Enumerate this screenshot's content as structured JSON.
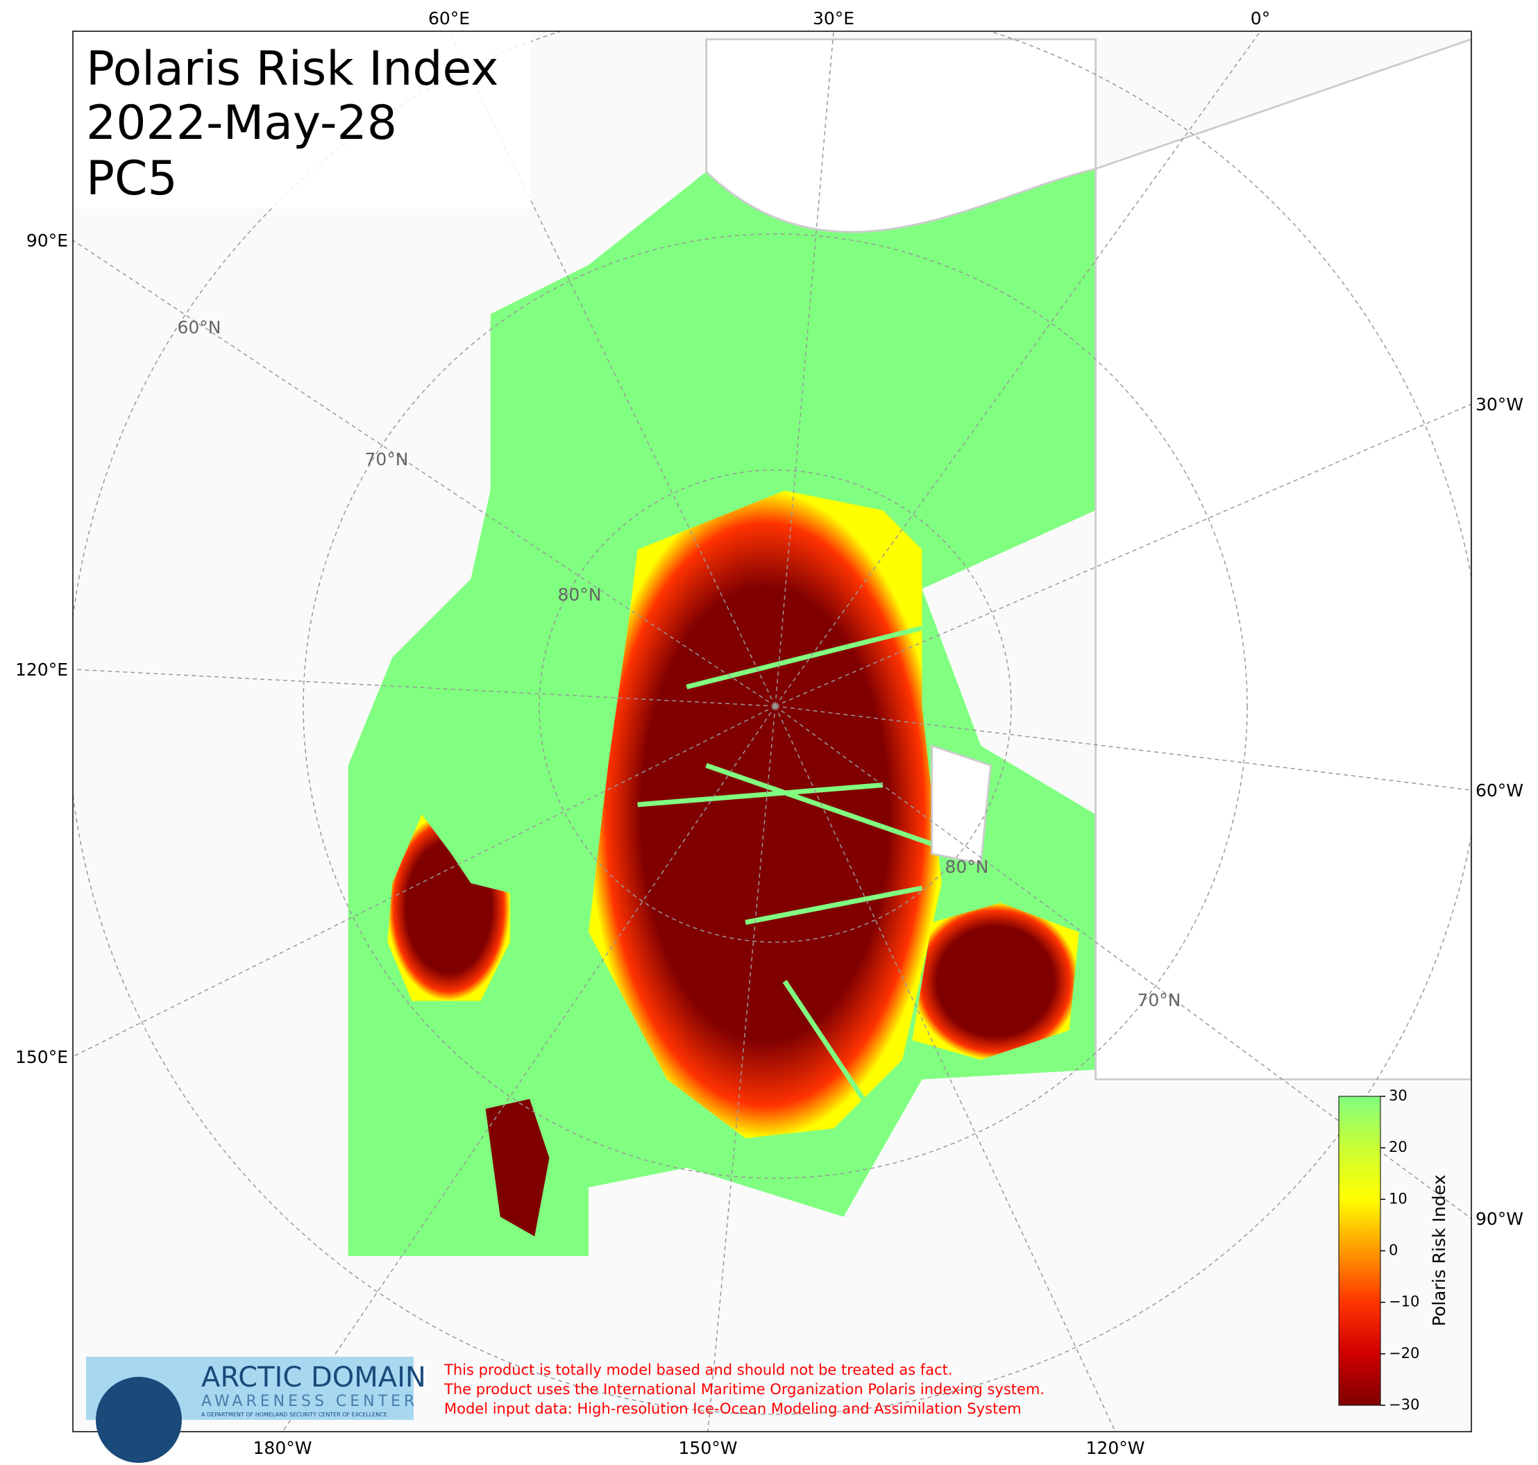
{
  "title": {
    "lines": [
      "Polaris Risk Index",
      "2022-May-28",
      "PC5"
    ]
  },
  "graticule": {
    "top": [
      "60°E",
      "30°E",
      "0°"
    ],
    "bottom": [
      "180°W",
      "150°W",
      "120°W"
    ],
    "left": [
      "90°E",
      "120°E",
      "150°E"
    ],
    "right": [
      "30°W",
      "60°W",
      "90°W"
    ],
    "latitudes": [
      "60°N",
      "70°N",
      "80°N",
      "80°N",
      "70°N"
    ]
  },
  "colorbar": {
    "label": "Polaris Risk Index",
    "lim": [
      -30,
      30
    ],
    "ticks": [
      {
        "value": -30,
        "label": "−30"
      },
      {
        "value": -20,
        "label": "−20"
      },
      {
        "value": -10,
        "label": "−10"
      },
      0,
      10,
      20,
      30
    ]
  },
  "logo": {
    "title": "ARCTIC DOMAIN",
    "subtitle": "AWARENESS CENTER",
    "tagline": "A DEPARTMENT OF HOMELAND SECURITY CENTER OF EXCELLENCE"
  },
  "disclaimer": [
    "This product is totally model based and should not be treated as fact.",
    "The product uses the International Maritime Organization Polaris indexing system.",
    "Model input data: High-resolution Ice-Ocean Modeling and Assimilation System"
  ]
}
